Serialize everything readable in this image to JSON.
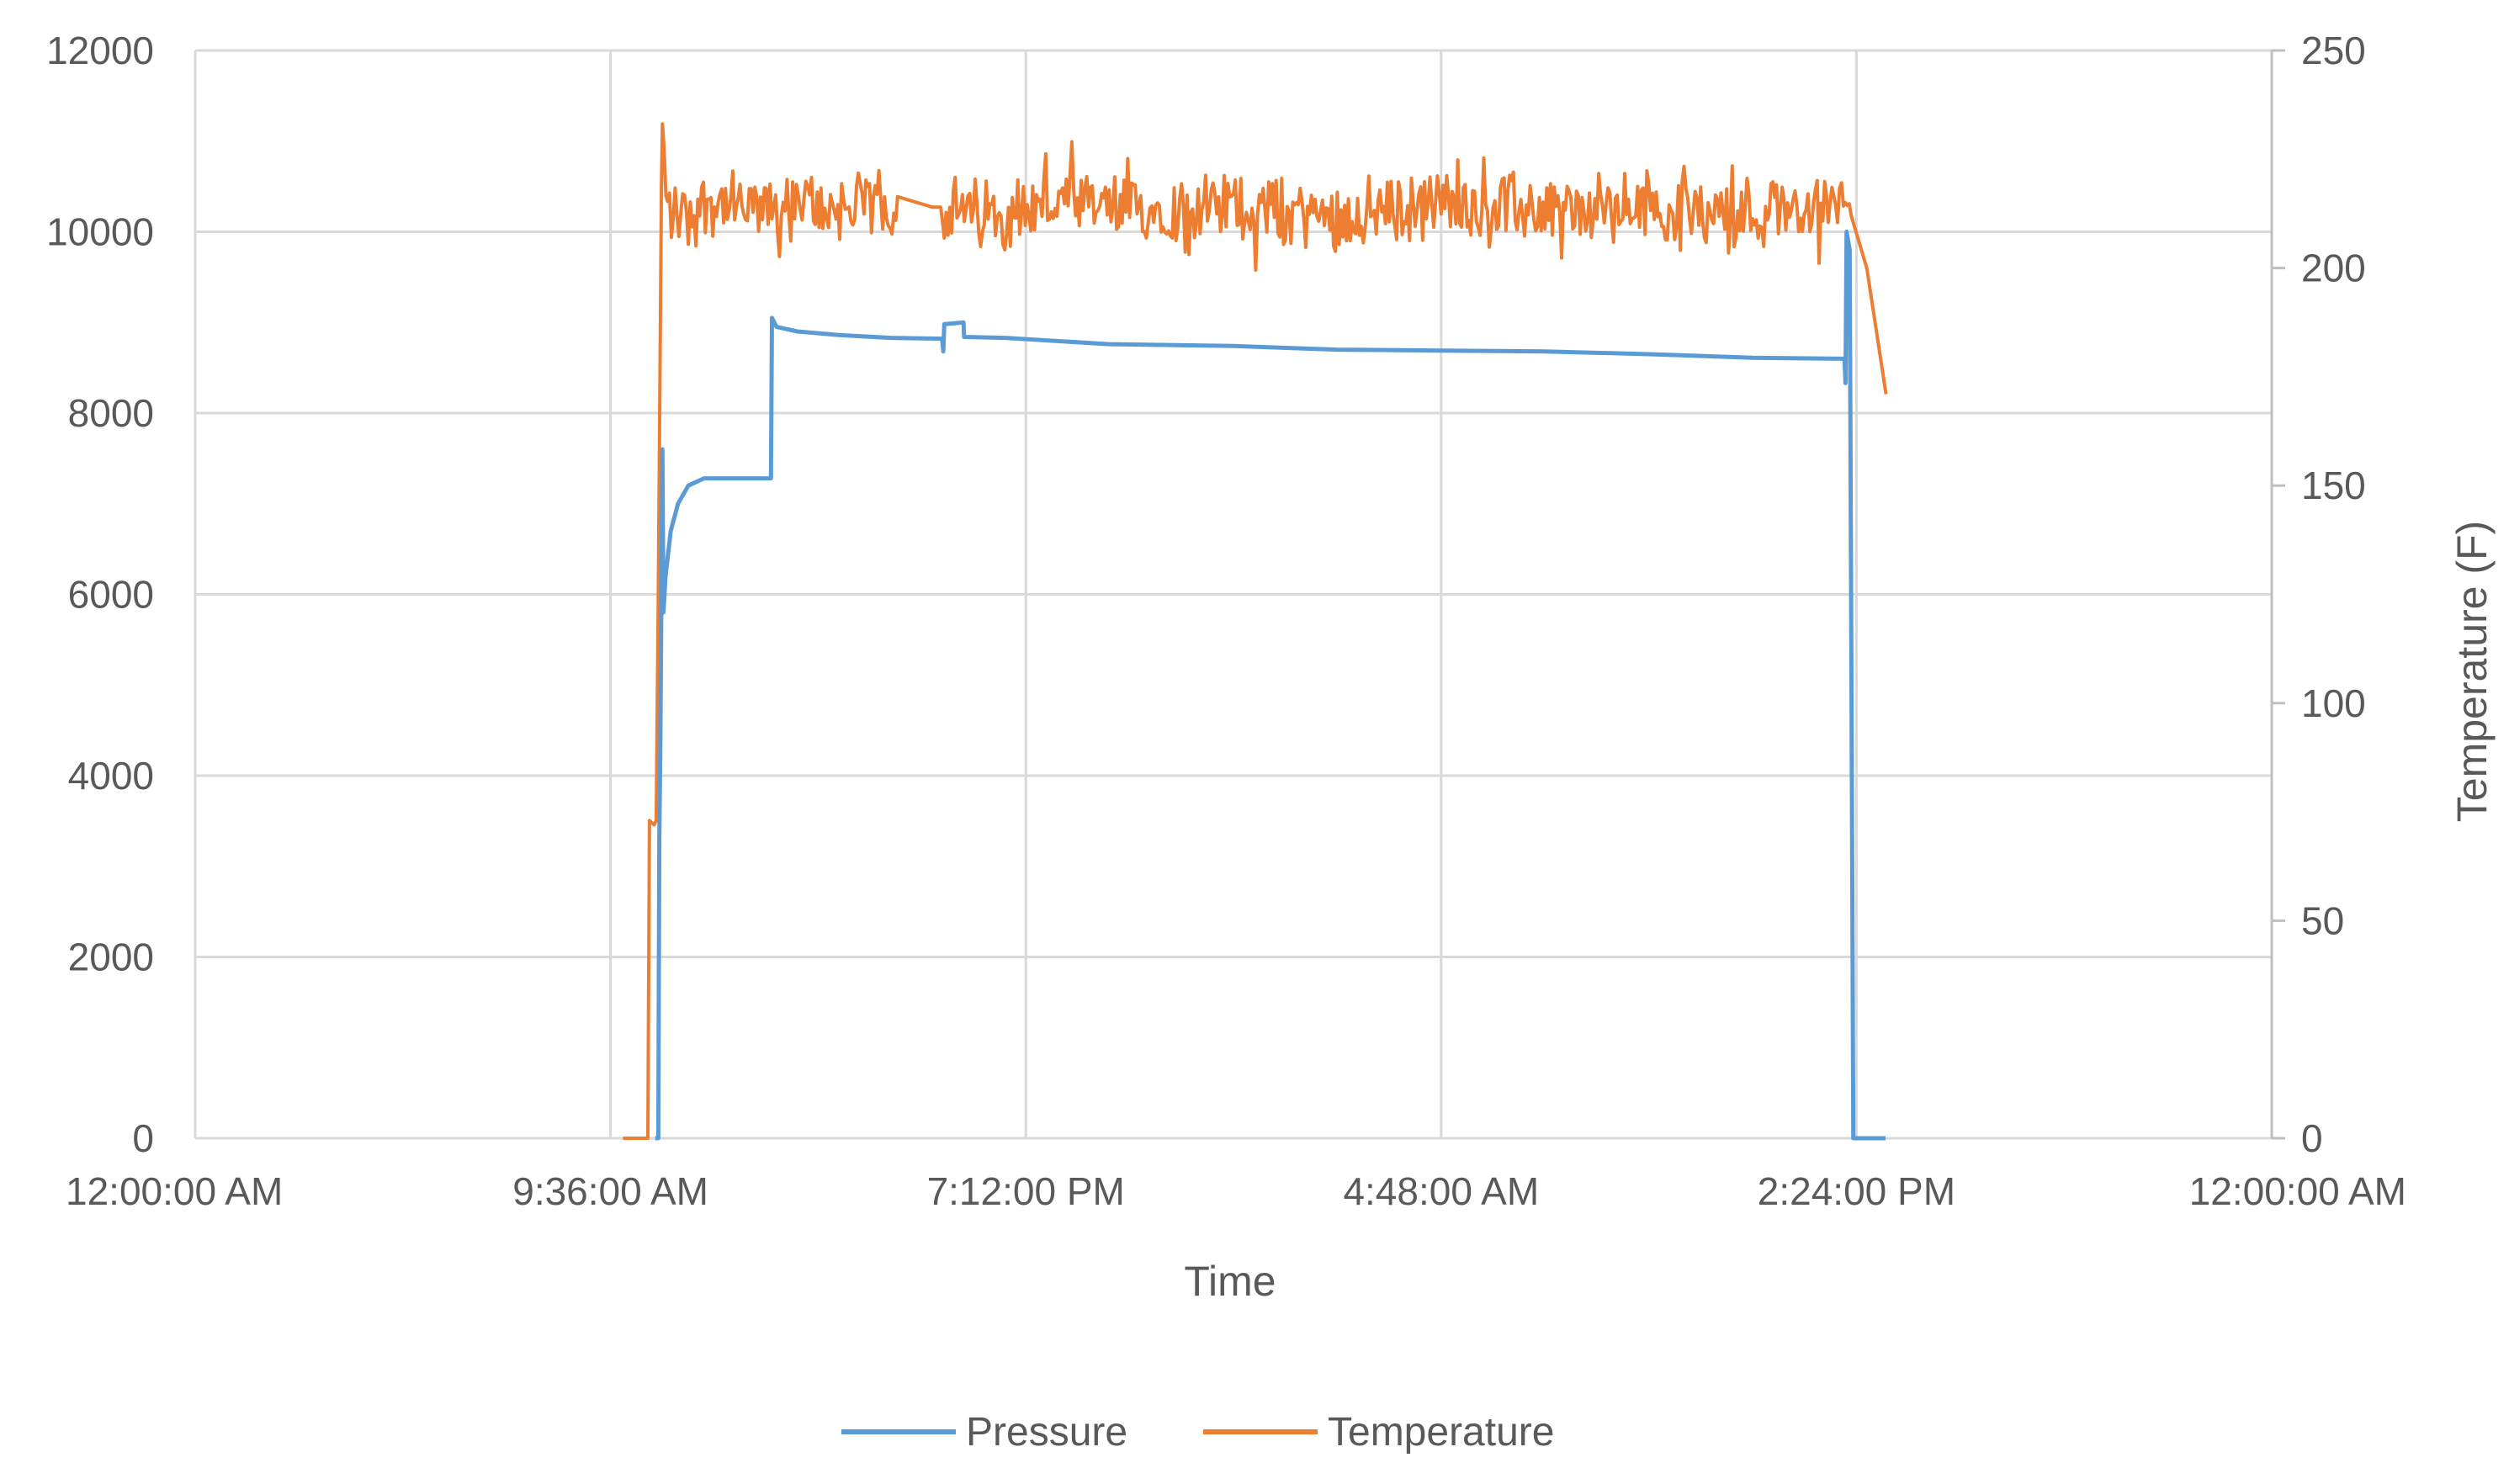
{
  "chart_data": {
    "type": "line",
    "xlabel": "Time",
    "ylabel_left": "",
    "ylabel_right": "Temperature (F)",
    "grid": true,
    "legend_position": "bottom",
    "x_axis": {
      "ticks": [
        "12:00:00 AM",
        "9:36:00 AM",
        "7:12:00 PM",
        "4:48:00 AM",
        "2:24:00 PM",
        "12:00:00 AM"
      ],
      "tick_values_days": [
        0,
        0.4,
        0.8,
        1.2,
        1.6,
        2.0
      ],
      "range_days": [
        0,
        2.0
      ]
    },
    "y_left": {
      "ylim": [
        0,
        12000
      ],
      "ticks": [
        0,
        2000,
        4000,
        6000,
        8000,
        10000,
        12000
      ]
    },
    "y_right": {
      "ylim": [
        0,
        250
      ],
      "ticks": [
        0,
        50,
        100,
        150,
        200,
        250
      ]
    },
    "series": [
      {
        "name": "Pressure",
        "axis": "left",
        "color": "#5B9BD5",
        "points": [
          [
            0.443,
            0
          ],
          [
            0.446,
            0
          ],
          [
            0.447,
            3300
          ],
          [
            0.448,
            4300
          ],
          [
            0.45,
            7600
          ],
          [
            0.451,
            5800
          ],
          [
            0.453,
            6200
          ],
          [
            0.458,
            6700
          ],
          [
            0.465,
            7000
          ],
          [
            0.475,
            7200
          ],
          [
            0.49,
            7280
          ],
          [
            0.51,
            7280
          ],
          [
            0.5545,
            7280
          ],
          [
            0.5555,
            9050
          ],
          [
            0.56,
            8950
          ],
          [
            0.58,
            8900
          ],
          [
            0.62,
            8860
          ],
          [
            0.67,
            8830
          ],
          [
            0.7195,
            8820
          ],
          [
            0.7205,
            8680
          ],
          [
            0.7215,
            8980
          ],
          [
            0.74,
            9000
          ],
          [
            0.7405,
            8840
          ],
          [
            0.78,
            8830
          ],
          [
            0.88,
            8760
          ],
          [
            1.0,
            8740
          ],
          [
            1.1,
            8700
          ],
          [
            1.2,
            8690
          ],
          [
            1.3,
            8680
          ],
          [
            1.4,
            8650
          ],
          [
            1.5,
            8610
          ],
          [
            1.5885,
            8600
          ],
          [
            1.5895,
            8330
          ],
          [
            1.5905,
            10000
          ],
          [
            1.5935,
            9800
          ],
          [
            1.597,
            0
          ],
          [
            1.628,
            0
          ]
        ]
      },
      {
        "name": "Temperature",
        "axis": "right",
        "color": "#ED7D31",
        "points": [
          [
            0.412,
            0
          ],
          [
            0.436,
            0
          ],
          [
            0.4375,
            73
          ],
          [
            0.442,
            72
          ],
          [
            0.444,
            73
          ],
          [
            0.446,
            125
          ],
          [
            0.449,
            218
          ],
          [
            0.45,
            230
          ],
          [
            0.455,
            214
          ],
          [
            0.475,
            212
          ],
          [
            0.495,
            216
          ],
          [
            0.53,
            213
          ],
          [
            0.57,
            214
          ],
          [
            0.61,
            214
          ],
          [
            0.6765,
            214
          ],
          [
            0.71,
            214
          ],
          [
            0.718,
            214
          ],
          [
            0.76,
            212
          ],
          [
            0.83,
            215
          ],
          [
            0.9,
            213
          ],
          [
            1.0,
            214
          ],
          [
            1.1,
            212
          ],
          [
            1.2,
            215
          ],
          [
            1.3,
            213
          ],
          [
            1.4,
            214
          ],
          [
            1.5,
            213
          ],
          [
            1.58,
            214
          ],
          [
            1.595,
            216
          ],
          [
            1.61,
            200
          ],
          [
            1.6285,
            171
          ]
        ]
      }
    ]
  }
}
